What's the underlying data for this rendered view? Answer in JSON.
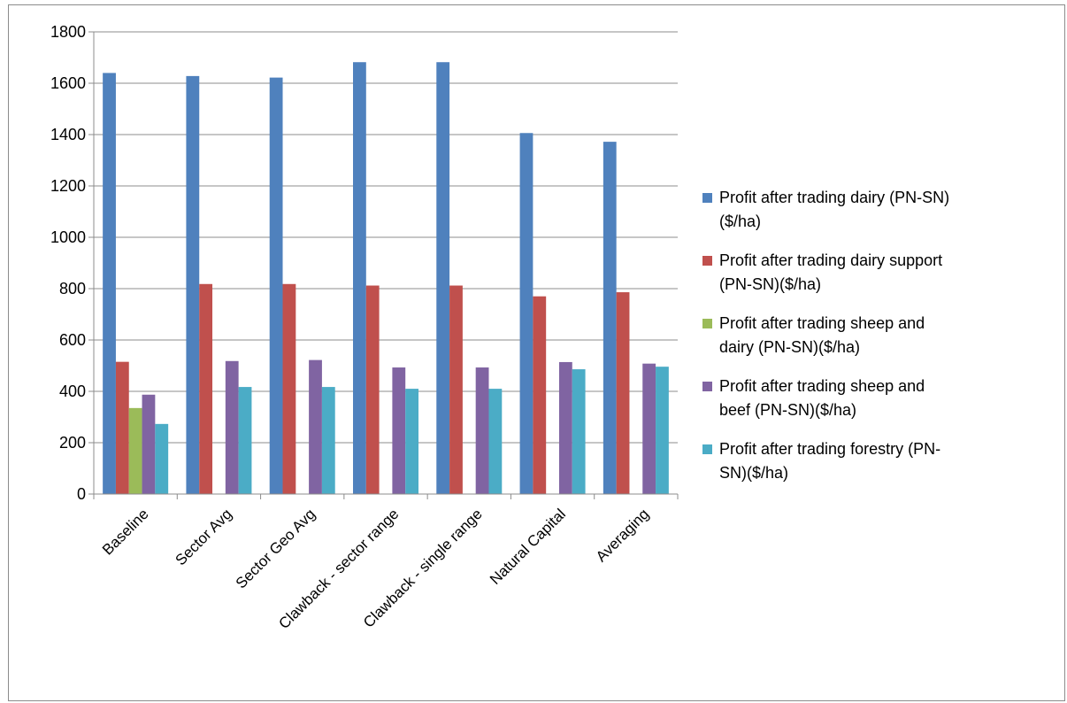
{
  "chart_data": {
    "type": "bar",
    "title": "",
    "xlabel": "",
    "ylabel": "",
    "ylim": [
      0,
      1800
    ],
    "yticks": [
      0,
      200,
      400,
      600,
      800,
      1000,
      1200,
      1400,
      1600,
      1800
    ],
    "grid": true,
    "legend_position": "right",
    "categories": [
      "Baseline",
      "Sector Avg",
      "Sector Geo Avg",
      "Clawback - sector range",
      "Clawback - single range",
      "Natural Capital",
      "Averaging"
    ],
    "series": [
      {
        "name": "Profit after trading dairy (PN-SN) ($/ha)",
        "label_lines": [
          "Profit after trading dairy (PN-SN)",
          "($/ha)"
        ],
        "color": "#4f81bd",
        "values": [
          1640,
          1628,
          1622,
          1682,
          1682,
          1406,
          1372
        ]
      },
      {
        "name": "Profit after trading dairy support (PN-SN)($/ha)",
        "label_lines": [
          "Profit after trading dairy support",
          "(PN-SN)($/ha)"
        ],
        "color": "#c0504d",
        "values": [
          515,
          818,
          818,
          812,
          812,
          770,
          786
        ]
      },
      {
        "name": "Profit after trading sheep and dairy (PN-SN)($/ha)",
        "label_lines": [
          "Profit after trading sheep and",
          "dairy (PN-SN)($/ha)"
        ],
        "color": "#9bbb59",
        "values": [
          335,
          0,
          0,
          0,
          0,
          0,
          0
        ]
      },
      {
        "name": "Profit after trading sheep and beef (PN-SN)($/ha)",
        "label_lines": [
          "Profit after trading sheep and",
          "beef (PN-SN)($/ha)"
        ],
        "color": "#8064a2",
        "values": [
          387,
          518,
          522,
          493,
          493,
          514,
          508
        ]
      },
      {
        "name": "Profit after trading forestry (PN-SN)($/ha)",
        "label_lines": [
          "Profit after trading forestry (PN-",
          "SN)($/ha)"
        ],
        "color": "#4bacc6",
        "values": [
          273,
          417,
          417,
          410,
          410,
          486,
          496
        ]
      }
    ]
  }
}
